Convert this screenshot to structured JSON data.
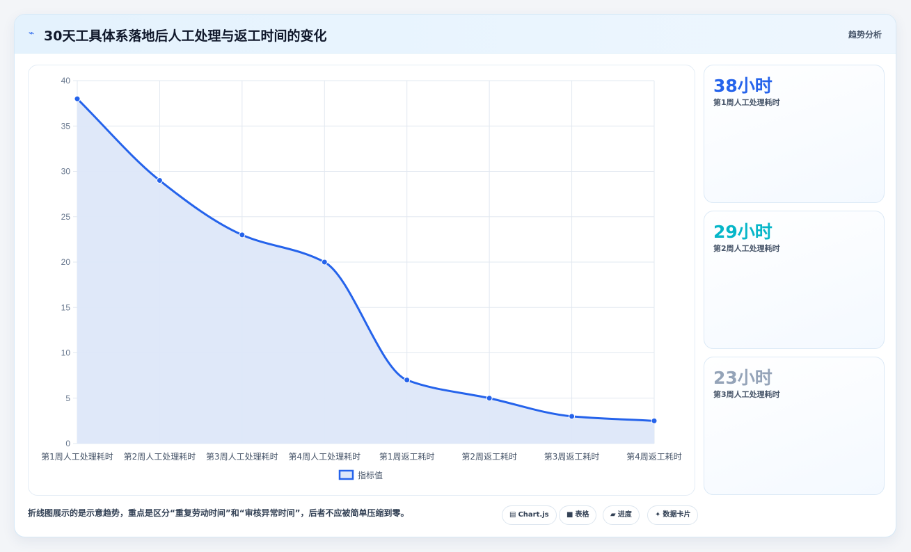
{
  "header": {
    "icon": "trend-line-icon",
    "title": "30天工具体系落地后人工处理与返工时间的变化",
    "tag": "趋势分析"
  },
  "chart_data": {
    "type": "line",
    "categories": [
      "第1周人工处理耗时",
      "第2周人工处理耗时",
      "第3周人工处理耗时",
      "第4周人工处理耗时",
      "第1周返工耗时",
      "第2周返工耗时",
      "第3周返工耗时",
      "第4周返工耗时"
    ],
    "series": [
      {
        "name": "指标值",
        "values": [
          38,
          29,
          23,
          20,
          7,
          5,
          3,
          2.5
        ]
      }
    ],
    "ylim": [
      0,
      40
    ],
    "yticks": [
      0,
      5,
      10,
      15,
      20,
      25,
      30,
      35,
      40
    ],
    "fill": true,
    "grid": true,
    "legend": "bottom",
    "colors": {
      "line": "#2563eb",
      "fill": "#dde7f9",
      "grid": "#e2e8f0"
    }
  },
  "stats": [
    {
      "value": "38小时",
      "label": "第1周人工处理耗时",
      "color": "#2563eb"
    },
    {
      "value": "29小时",
      "label": "第2周人工处理耗时",
      "color": "#06b6c8"
    },
    {
      "value": "23小时",
      "label": "第3周人工处理耗时",
      "color": "#94a3b8"
    }
  ],
  "footer": {
    "note": "折线图展示的是示意趋势，重点是区分“重复劳动时间”和“审核异常时间”，后者不应被简单压缩到零。",
    "chips": [
      {
        "icon": "chart-icon",
        "glyph": "▤",
        "label": "Chart.js"
      },
      {
        "icon": "table-icon",
        "glyph": "■",
        "label": "表格"
      },
      {
        "icon": "progress-icon",
        "glyph": "▰",
        "label": "进度"
      },
      {
        "icon": "sparkle-icon",
        "glyph": "✦",
        "label": "数据卡片"
      }
    ]
  }
}
